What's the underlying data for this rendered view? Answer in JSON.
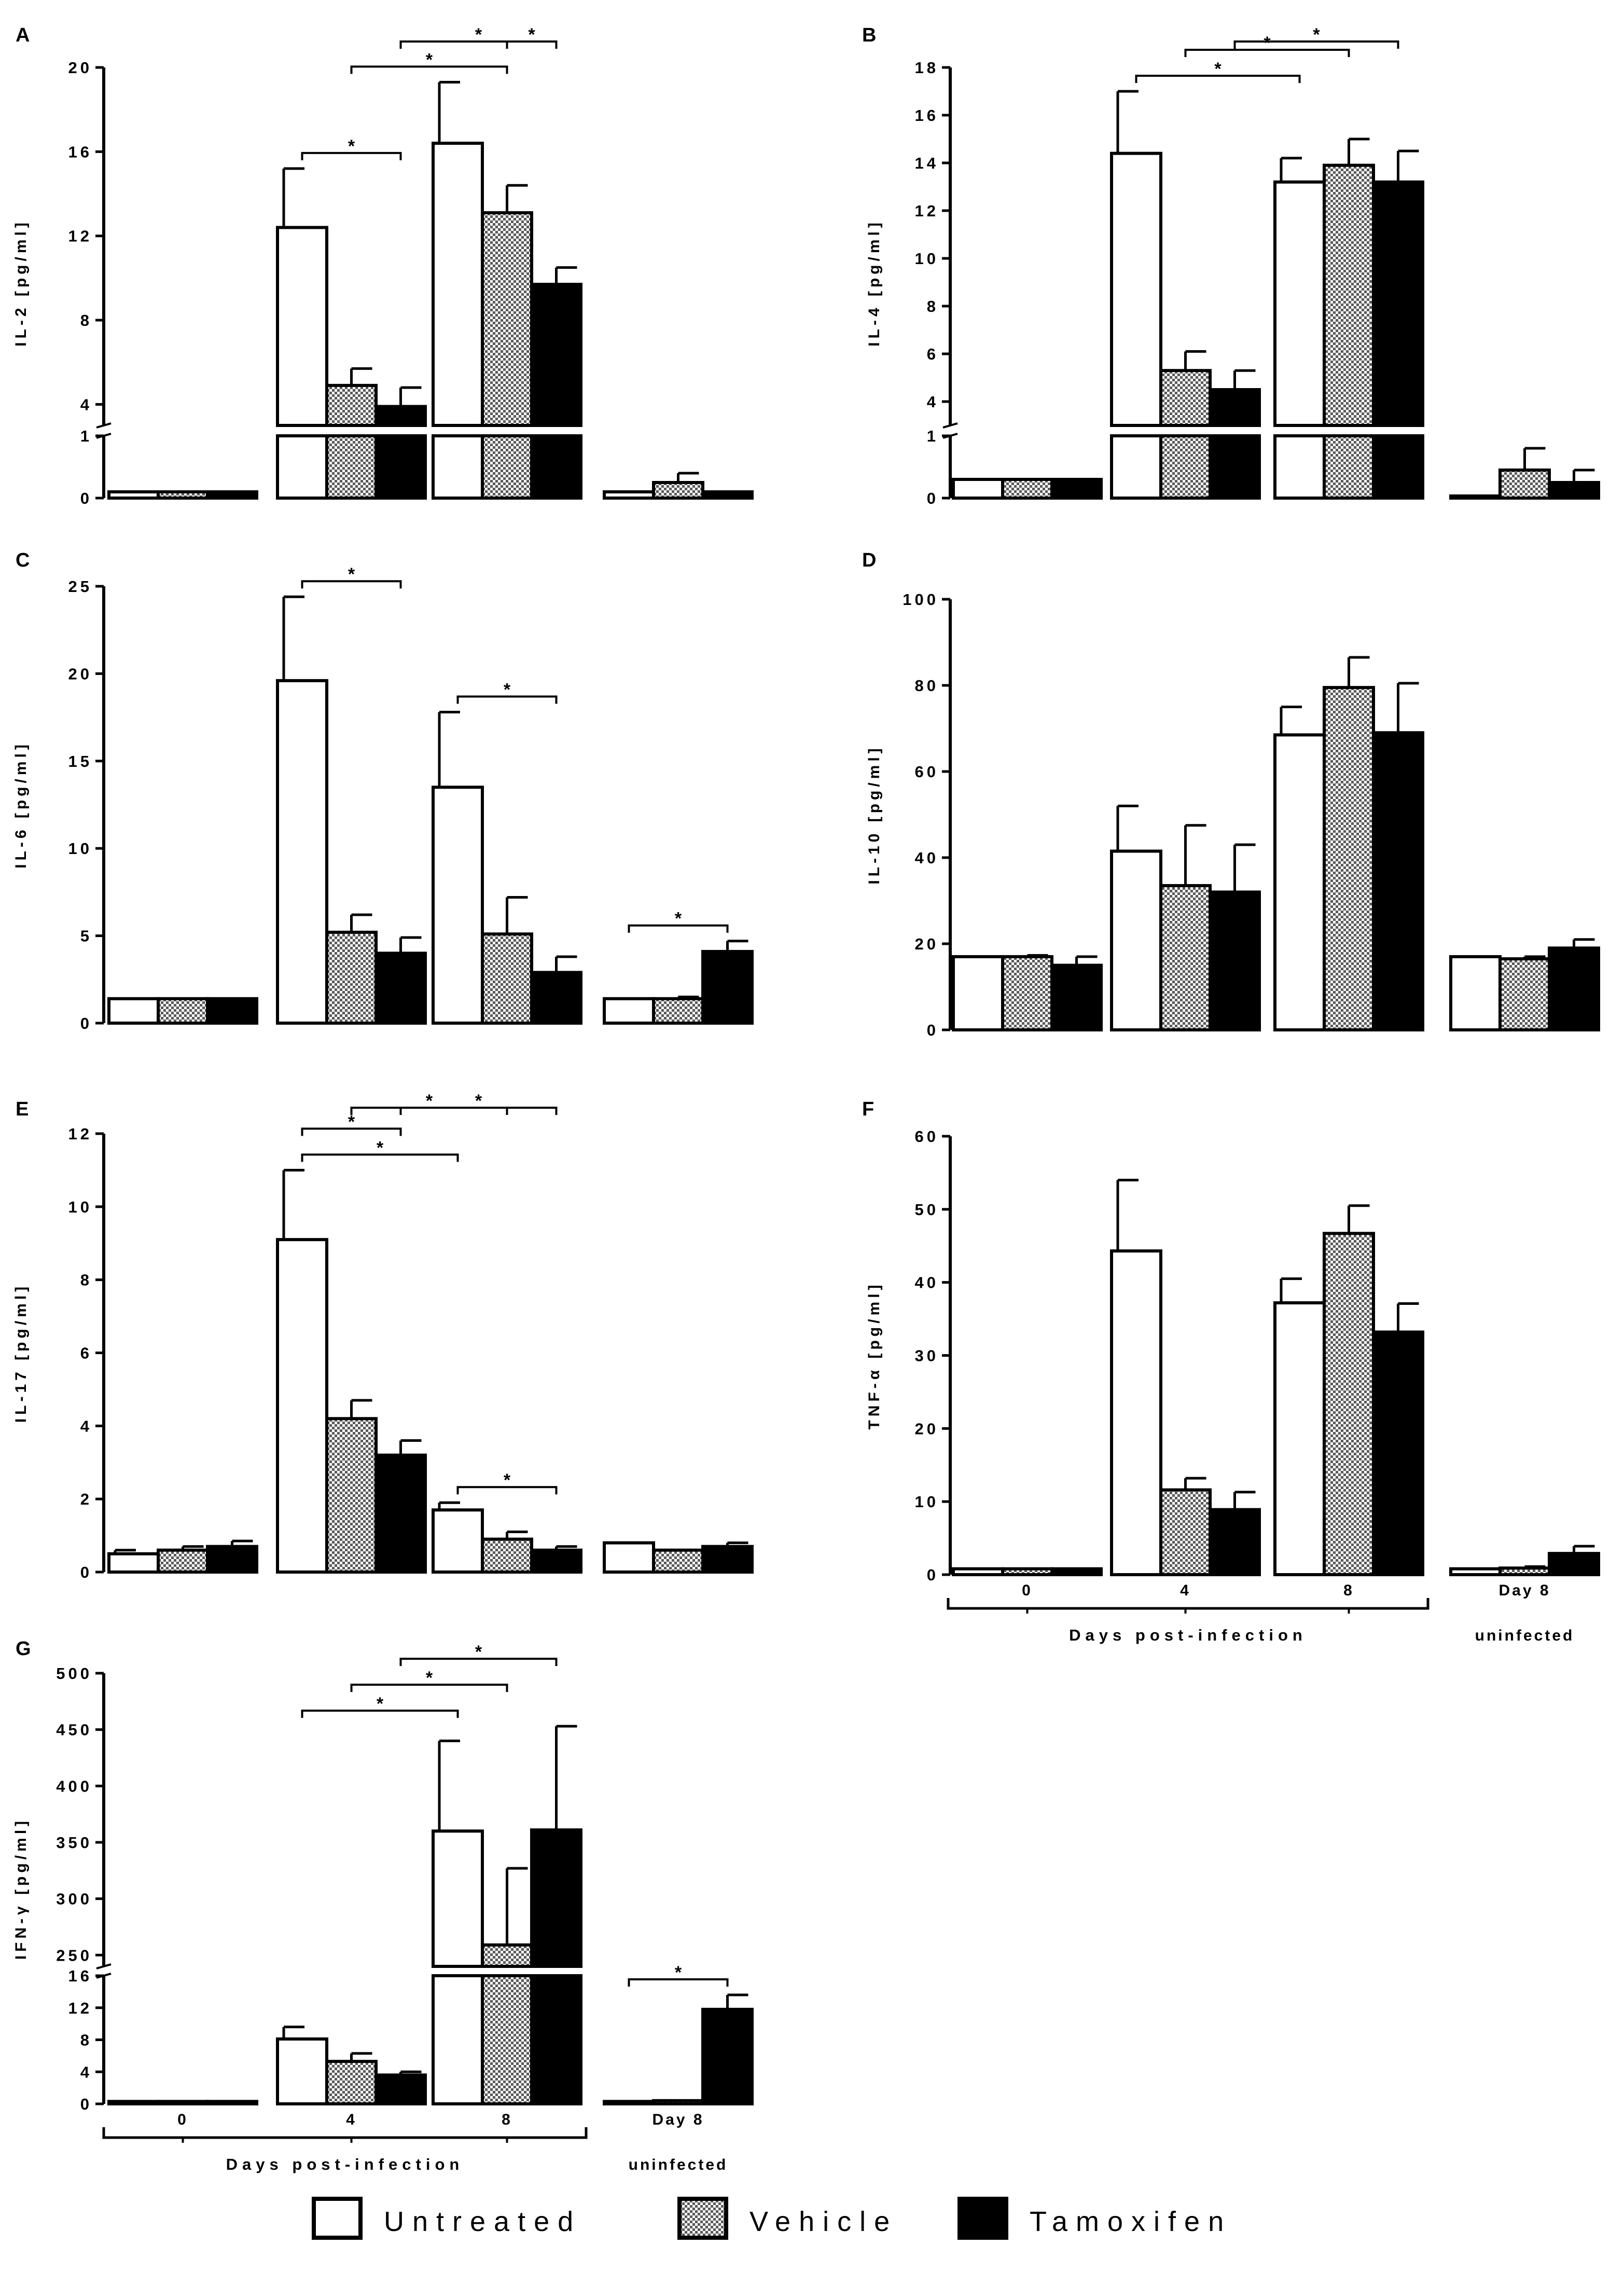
{
  "colors": {
    "untreated": "#ffffff",
    "vehicle": "dotted-grey",
    "tamoxifen": "#000000",
    "stroke": "#000000"
  },
  "legend": [
    {
      "key": "untreated",
      "label": "Untreated"
    },
    {
      "key": "vehicle",
      "label": "Vehicle"
    },
    {
      "key": "tamoxifen",
      "label": "Tamoxifen"
    }
  ],
  "x_axis": {
    "groups": [
      "0",
      "4",
      "8",
      "Day 8"
    ],
    "group_sublabel": "uninfected",
    "bracket_label": "Days post-infection"
  },
  "chart_data": [
    {
      "panel": "A",
      "type": "bar",
      "ylabel": "IL-2 [pg/ml]",
      "categories": [
        "0",
        "4",
        "8",
        "Day 8 uninfected"
      ],
      "broken_axis": {
        "lower": [
          0,
          1
        ],
        "upper": [
          3,
          20
        ]
      },
      "ticks_lower": [
        "0",
        "1"
      ],
      "ticks_upper": [
        "4",
        "8",
        "12",
        "16",
        "20"
      ],
      "series": [
        {
          "name": "Untreated",
          "values": [
            0.1,
            12.4,
            16.4,
            0.1
          ],
          "errors": [
            0,
            2.8,
            2.9,
            0
          ]
        },
        {
          "name": "Vehicle",
          "values": [
            0.1,
            4.9,
            13.1,
            0.25
          ],
          "errors": [
            0,
            0.8,
            1.3,
            0.15
          ]
        },
        {
          "name": "Tamoxifen",
          "values": [
            0.1,
            3.9,
            9.7,
            0.1
          ],
          "errors": [
            0,
            0.9,
            0.8,
            0
          ]
        }
      ],
      "sig": [
        {
          "label": "*",
          "from": [
            1,
            0
          ],
          "to": [
            1,
            2
          ]
        },
        {
          "label": "*",
          "from": [
            1,
            1
          ],
          "to": [
            2,
            1
          ]
        },
        {
          "label": "*",
          "from": [
            1,
            2
          ],
          "to": [
            2,
            2
          ]
        },
        {
          "label": "*",
          "from": [
            2,
            1
          ],
          "to": [
            2,
            2
          ]
        }
      ]
    },
    {
      "panel": "B",
      "type": "bar",
      "ylabel": "IL-4 [pg/ml]",
      "categories": [
        "0",
        "4",
        "8",
        "Day 8 uninfected"
      ],
      "broken_axis": {
        "lower": [
          0,
          1
        ],
        "upper": [
          3,
          18
        ]
      },
      "ticks_lower": [
        "0",
        "1"
      ],
      "ticks_upper": [
        "4",
        "6",
        "8",
        "10",
        "12",
        "14",
        "16",
        "18"
      ],
      "series": [
        {
          "name": "Untreated",
          "values": [
            0.3,
            14.4,
            13.2,
            0.02
          ],
          "errors": [
            0,
            2.6,
            1.0,
            0
          ]
        },
        {
          "name": "Vehicle",
          "values": [
            0.3,
            5.3,
            13.9,
            0.45
          ],
          "errors": [
            0,
            0.8,
            1.1,
            0.35
          ]
        },
        {
          "name": "Tamoxifen",
          "values": [
            0.3,
            4.5,
            13.2,
            0.25
          ],
          "errors": [
            0,
            0.8,
            1.3,
            0.2
          ]
        }
      ],
      "sig": [
        {
          "label": "*",
          "from": [
            1,
            0
          ],
          "to": [
            2,
            0
          ]
        },
        {
          "label": "*",
          "from": [
            1,
            1
          ],
          "to": [
            2,
            1
          ]
        },
        {
          "label": "*",
          "from": [
            1,
            2
          ],
          "to": [
            2,
            2
          ]
        }
      ]
    },
    {
      "panel": "C",
      "type": "bar",
      "ylabel": "IL-6 [pg/ml]",
      "categories": [
        "0",
        "4",
        "8",
        "Day 8 uninfected"
      ],
      "ylim": [
        0,
        25
      ],
      "ticks": [
        "0",
        "5",
        "10",
        "15",
        "20",
        "25"
      ],
      "series": [
        {
          "name": "Untreated",
          "values": [
            1.4,
            19.6,
            13.5,
            1.4
          ],
          "errors": [
            0,
            4.8,
            4.3,
            0
          ]
        },
        {
          "name": "Vehicle",
          "values": [
            1.4,
            5.2,
            5.1,
            1.4
          ],
          "errors": [
            0,
            1.0,
            2.1,
            0.1
          ]
        },
        {
          "name": "Tamoxifen",
          "values": [
            1.4,
            4.0,
            2.9,
            4.1
          ],
          "errors": [
            0,
            0.9,
            0.9,
            0.6
          ]
        }
      ],
      "sig": [
        {
          "label": "*",
          "from": [
            1,
            0
          ],
          "to": [
            1,
            2
          ]
        },
        {
          "label": "*",
          "from": [
            2,
            0
          ],
          "to": [
            2,
            2
          ]
        },
        {
          "label": "*",
          "from": [
            3,
            0
          ],
          "to": [
            3,
            2
          ]
        }
      ]
    },
    {
      "panel": "D",
      "type": "bar",
      "ylabel": "IL-10 [pg/ml]",
      "categories": [
        "0",
        "4",
        "8",
        "Day 8 uninfected"
      ],
      "ylim": [
        0,
        100
      ],
      "ticks": [
        "0",
        "20",
        "40",
        "60",
        "80",
        "100"
      ],
      "series": [
        {
          "name": "Untreated",
          "values": [
            17,
            41.5,
            68.5,
            17
          ],
          "errors": [
            0,
            10.5,
            6.5,
            0
          ]
        },
        {
          "name": "Vehicle",
          "values": [
            17,
            33.5,
            79.5,
            16.5
          ],
          "errors": [
            0.3,
            14,
            7,
            0.5
          ]
        },
        {
          "name": "Tamoxifen",
          "values": [
            15,
            32,
            69,
            19
          ],
          "errors": [
            2,
            11,
            11.5,
            2
          ]
        }
      ],
      "sig": []
    },
    {
      "panel": "E",
      "type": "bar",
      "ylabel": "IL-17 [pg/ml]",
      "categories": [
        "0",
        "4",
        "8",
        "Day 8 uninfected"
      ],
      "ylim": [
        0,
        12
      ],
      "ticks": [
        "0",
        "2",
        "4",
        "6",
        "8",
        "10",
        "12"
      ],
      "series": [
        {
          "name": "Untreated",
          "values": [
            0.5,
            9.1,
            1.7,
            0.8
          ],
          "errors": [
            0.1,
            1.9,
            0.2,
            0
          ]
        },
        {
          "name": "Vehicle",
          "values": [
            0.6,
            4.2,
            0.9,
            0.6
          ],
          "errors": [
            0.1,
            0.5,
            0.2,
            0
          ]
        },
        {
          "name": "Tamoxifen",
          "values": [
            0.7,
            3.2,
            0.6,
            0.7
          ],
          "errors": [
            0.15,
            0.4,
            0.1,
            0.1
          ]
        }
      ],
      "sig": [
        {
          "label": "*",
          "from": [
            1,
            0
          ],
          "to": [
            2,
            0
          ]
        },
        {
          "label": "*",
          "from": [
            1,
            0
          ],
          "to": [
            1,
            2
          ]
        },
        {
          "label": "*",
          "from": [
            1,
            1
          ],
          "to": [
            2,
            1
          ]
        },
        {
          "label": "*",
          "from": [
            1,
            2
          ],
          "to": [
            2,
            2
          ]
        },
        {
          "label": "*",
          "from": [
            2,
            0
          ],
          "to": [
            2,
            2
          ]
        }
      ]
    },
    {
      "panel": "F",
      "type": "bar",
      "ylabel": "TNF-α [pg/ml]",
      "categories": [
        "0",
        "4",
        "8",
        "Day 8 uninfected"
      ],
      "ylim": [
        0,
        60
      ],
      "ticks": [
        "0",
        "10",
        "20",
        "30",
        "40",
        "50",
        "60"
      ],
      "series": [
        {
          "name": "Untreated",
          "values": [
            0.8,
            44.3,
            37.2,
            0.8
          ],
          "errors": [
            0,
            9.7,
            3.3,
            0
          ]
        },
        {
          "name": "Vehicle",
          "values": [
            0.8,
            11.6,
            46.7,
            0.9
          ],
          "errors": [
            0,
            1.6,
            3.8,
            0.2
          ]
        },
        {
          "name": "Tamoxifen",
          "values": [
            0.8,
            8.9,
            33.2,
            2.9
          ],
          "errors": [
            0,
            2.4,
            3.9,
            1.0
          ]
        }
      ],
      "sig": []
    },
    {
      "panel": "G",
      "type": "bar",
      "ylabel": "IFN-γ [pg/ml]",
      "categories": [
        "0",
        "4",
        "8",
        "Day 8 uninfected"
      ],
      "broken_axis": {
        "lower": [
          0,
          16
        ],
        "upper": [
          240,
          500
        ]
      },
      "ticks_lower": [
        "0",
        "4",
        "8",
        "12",
        "16"
      ],
      "ticks_upper": [
        "250",
        "300",
        "350",
        "400",
        "450",
        "500"
      ],
      "series": [
        {
          "name": "Untreated",
          "values": [
            0.3,
            8.1,
            360,
            0.3
          ],
          "errors": [
            0,
            1.5,
            80,
            0
          ]
        },
        {
          "name": "Vehicle",
          "values": [
            0.3,
            5.3,
            259,
            0.4
          ],
          "errors": [
            0,
            1.0,
            68,
            0
          ]
        },
        {
          "name": "Tamoxifen",
          "values": [
            0.3,
            3.6,
            361,
            11.8
          ],
          "errors": [
            0,
            0.4,
            92,
            1.8
          ]
        }
      ],
      "sig": [
        {
          "label": "*",
          "from": [
            1,
            0
          ],
          "to": [
            2,
            0
          ]
        },
        {
          "label": "*",
          "from": [
            1,
            1
          ],
          "to": [
            2,
            1
          ]
        },
        {
          "label": "*",
          "from": [
            1,
            2
          ],
          "to": [
            2,
            2
          ]
        },
        {
          "label": "*",
          "from": [
            3,
            0
          ],
          "to": [
            3,
            2
          ]
        }
      ]
    }
  ]
}
